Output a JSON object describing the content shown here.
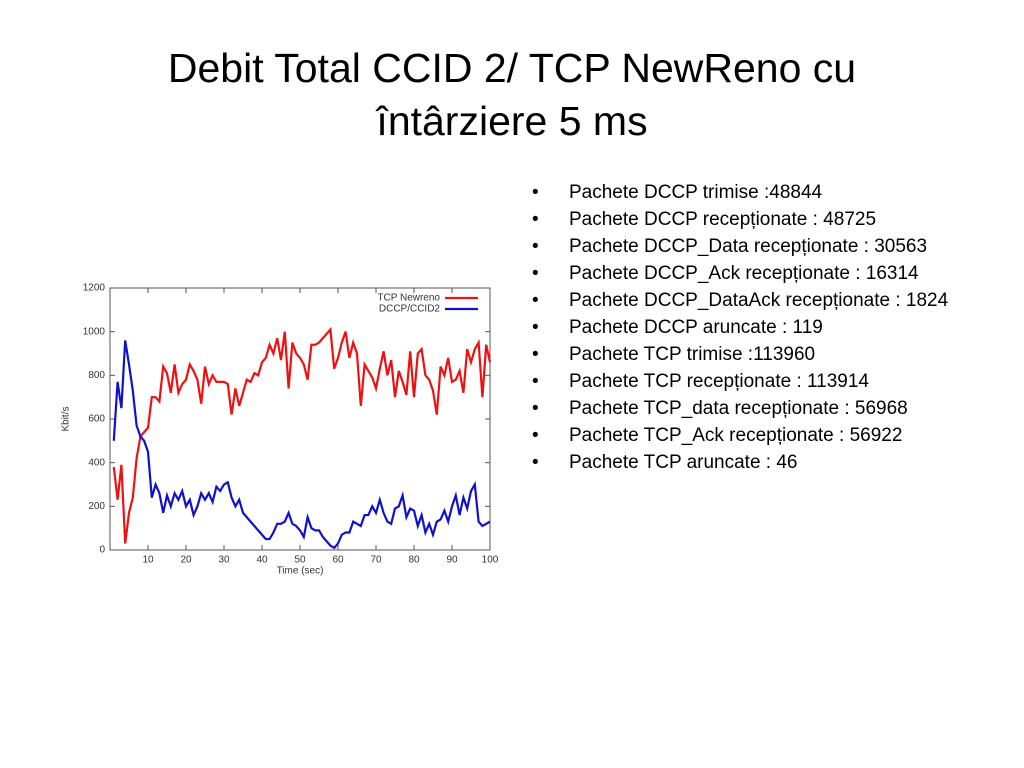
{
  "title": [
    "Debit Total CCID 2/ TCP NewReno cu",
    "întârziere 5 ms"
  ],
  "bullets": [
    "Pachete DCCP trimise :48844",
    "Pachete DCCP recepționate : 48725",
    "Pachete DCCP_Data recepționate : 30563",
    "Pachete DCCP_Ack recepționate : 16314",
    "Pachete DCCP_DataAck recepționate : 1824",
    "Pachete DCCP aruncate : 119",
    "Pachete TCP trimise :113960",
    "Pachete TCP recepționate : 113914",
    "Pachete TCP_data recepționate : 56968",
    "Pachete TCP_Ack recepționate : 56922",
    "Pachete TCP aruncate : 46"
  ],
  "chart_data": {
    "type": "line",
    "x_label": "Time (sec)",
    "y_label": "Kbit/s",
    "x": [
      1,
      2,
      3,
      4,
      5,
      6,
      7,
      8,
      9,
      10,
      11,
      12,
      13,
      14,
      15,
      16,
      17,
      18,
      19,
      20,
      21,
      22,
      23,
      24,
      25,
      26,
      27,
      28,
      29,
      30,
      31,
      32,
      33,
      34,
      35,
      36,
      37,
      38,
      39,
      40,
      41,
      42,
      43,
      44,
      45,
      46,
      47,
      48,
      49,
      50,
      51,
      52,
      53,
      54,
      55,
      56,
      57,
      58,
      59,
      60,
      61,
      62,
      63,
      64,
      65,
      66,
      67,
      68,
      69,
      70,
      71,
      72,
      73,
      74,
      75,
      76,
      77,
      78,
      79,
      80,
      81,
      82,
      83,
      84,
      85,
      86,
      87,
      88,
      89,
      90,
      91,
      92,
      93,
      94,
      95,
      96,
      97,
      98,
      99,
      100
    ],
    "series": [
      {
        "name": "TCP Newreno",
        "color": "#ee1111",
        "values": [
          380,
          230,
          390,
          30,
          170,
          240,
          420,
          520,
          540,
          560,
          700,
          700,
          680,
          840,
          810,
          720,
          850,
          720,
          760,
          780,
          850,
          820,
          780,
          670,
          840,
          760,
          800,
          770,
          770,
          770,
          760,
          620,
          740,
          660,
          720,
          780,
          770,
          810,
          800,
          860,
          880,
          940,
          900,
          970,
          870,
          1000,
          740,
          950,
          900,
          880,
          850,
          780,
          940,
          940,
          950,
          970,
          990,
          1010,
          830,
          880,
          950,
          1000,
          880,
          950,
          900,
          660,
          850,
          820,
          790,
          740,
          830,
          910,
          800,
          870,
          700,
          820,
          770,
          710,
          910,
          700,
          900,
          920,
          800,
          780,
          730,
          620,
          840,
          800,
          880,
          770,
          780,
          820,
          720,
          920,
          860,
          920,
          950,
          700,
          940,
          860
        ]
      },
      {
        "name": "DCCP/CCID2",
        "color": "#1111cc",
        "values": [
          500,
          770,
          650,
          960,
          850,
          730,
          570,
          520,
          500,
          450,
          240,
          300,
          260,
          170,
          250,
          200,
          260,
          230,
          270,
          200,
          230,
          160,
          200,
          260,
          230,
          260,
          220,
          290,
          270,
          300,
          310,
          240,
          200,
          230,
          170,
          150,
          130,
          110,
          90,
          70,
          50,
          50,
          80,
          120,
          120,
          130,
          170,
          120,
          110,
          90,
          60,
          150,
          100,
          90,
          90,
          60,
          40,
          20,
          10,
          30,
          70,
          80,
          80,
          130,
          120,
          110,
          160,
          160,
          200,
          170,
          230,
          170,
          130,
          120,
          190,
          200,
          250,
          150,
          190,
          180,
          110,
          160,
          80,
          120,
          70,
          130,
          140,
          180,
          130,
          200,
          250,
          160,
          240,
          190,
          270,
          300,
          130,
          110,
          120,
          130
        ]
      }
    ],
    "xlim": [
      0,
      100
    ],
    "ylim": [
      0,
      1200
    ],
    "xticks": [
      10,
      20,
      30,
      40,
      50,
      60,
      70,
      80,
      90,
      100
    ],
    "yticks": [
      0,
      200,
      400,
      600,
      800,
      1000,
      1200
    ],
    "legend": "upper right"
  }
}
